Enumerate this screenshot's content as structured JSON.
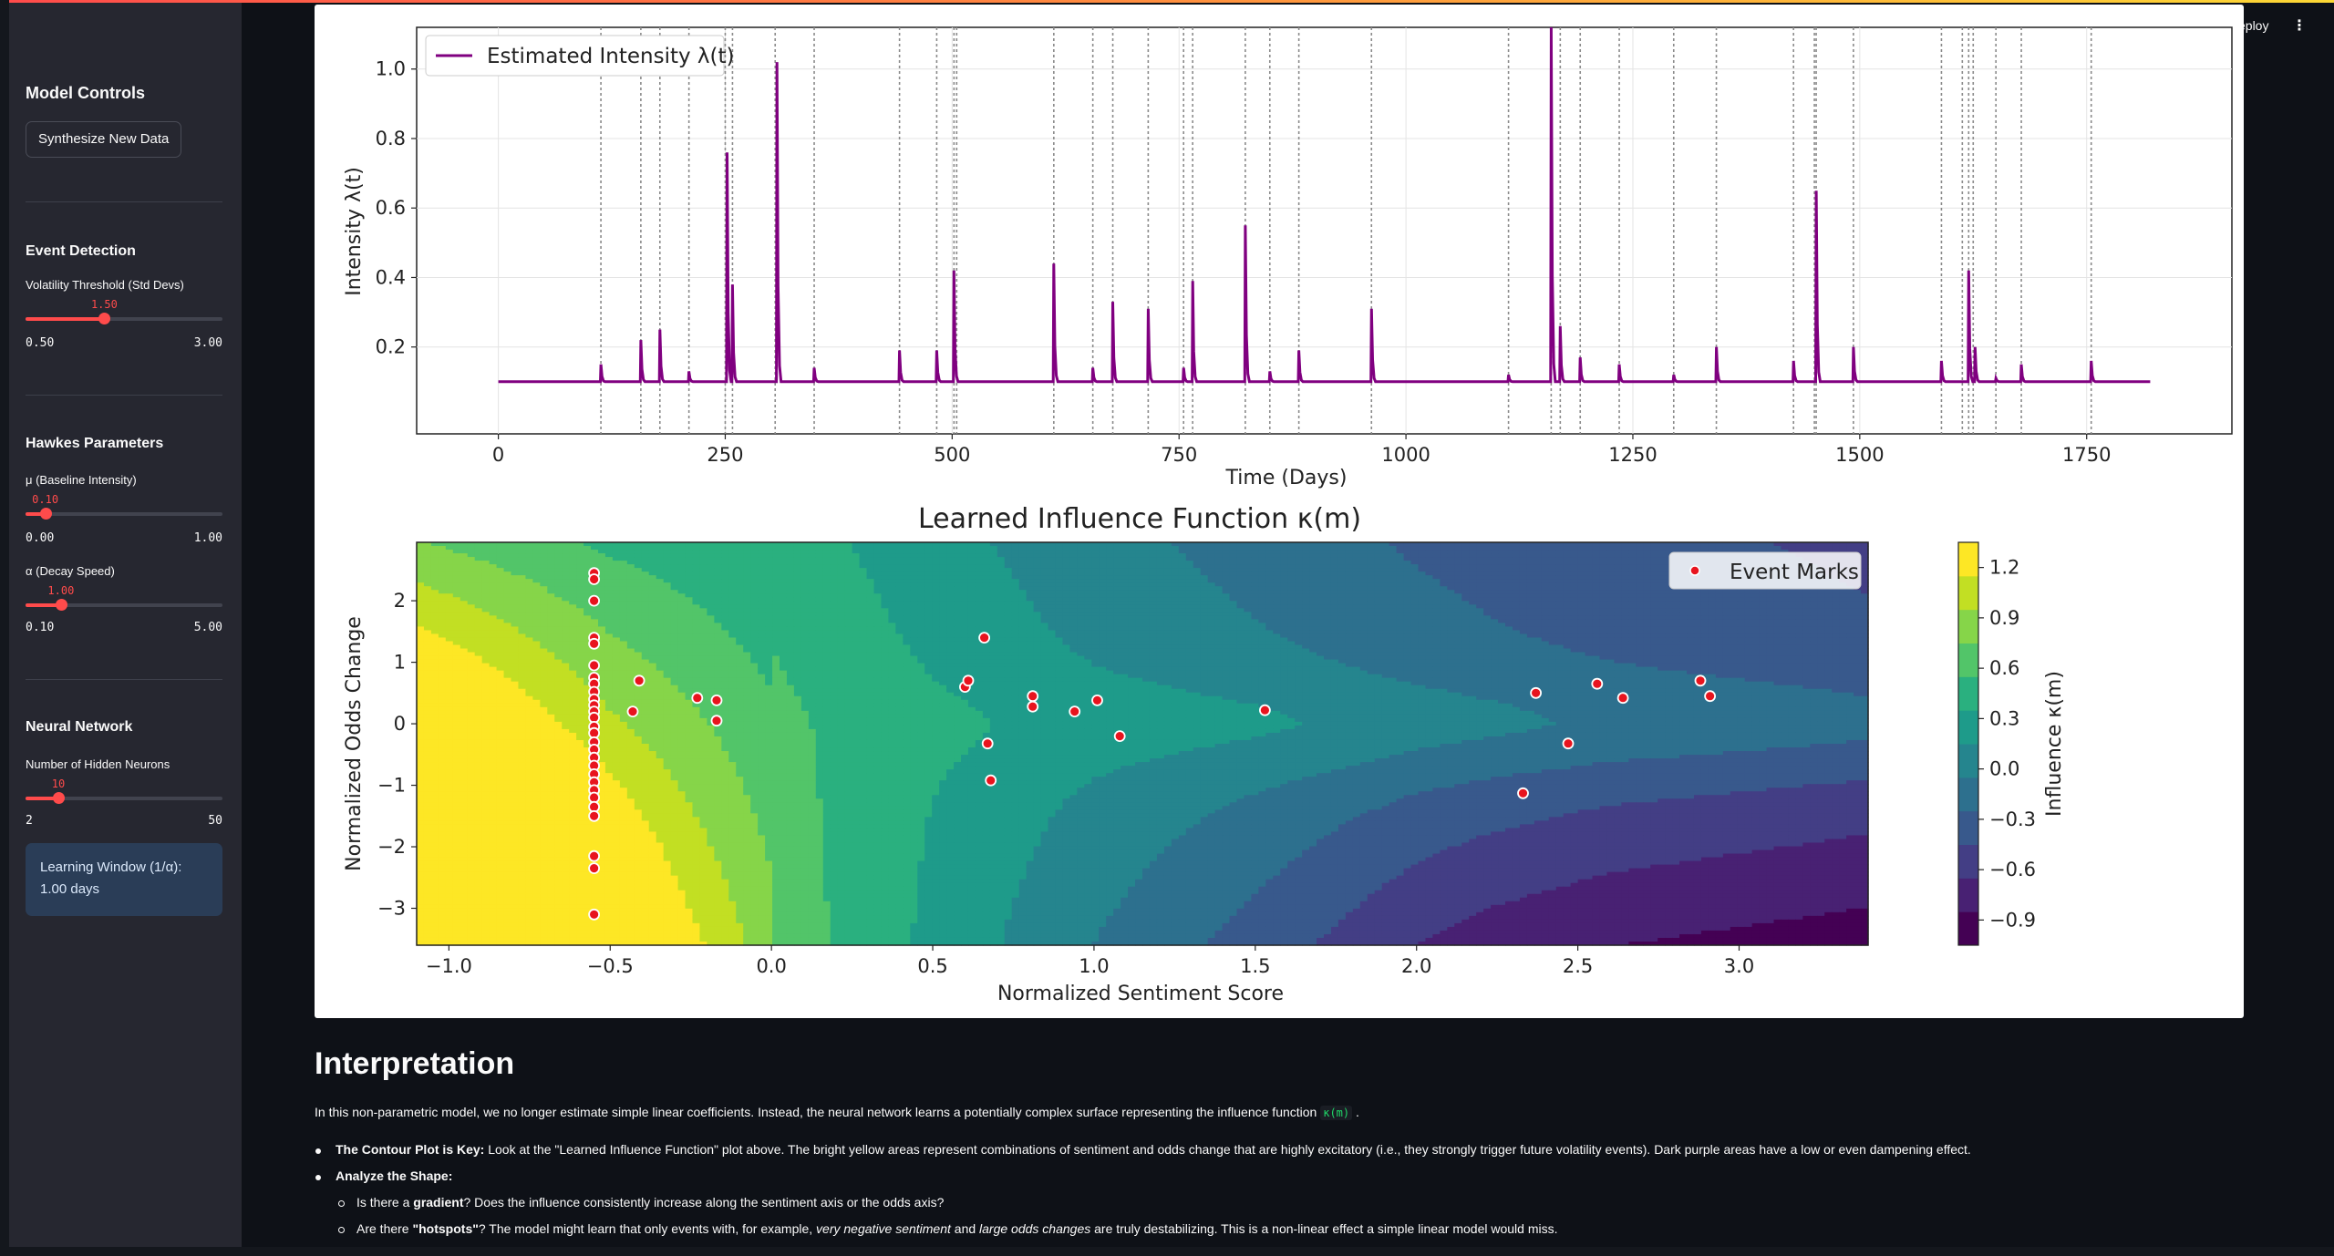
{
  "header": {
    "deploy_label": "eploy",
    "menu_icon": "⋮"
  },
  "sidebar": {
    "model_controls": {
      "title": "Model Controls",
      "synthesize_label": "Synthesize New Data"
    },
    "event_detection": {
      "title": "Event Detection",
      "threshold": {
        "label": "Volatility Threshold (Std Devs)",
        "value": "1.50",
        "min": "0.50",
        "max": "3.00",
        "fraction": 0.4
      }
    },
    "hawkes": {
      "title": "Hawkes Parameters",
      "mu": {
        "label": "μ (Baseline Intensity)",
        "value": "0.10",
        "min": "0.00",
        "max": "1.00",
        "fraction": 0.1
      },
      "alpha": {
        "label": "α (Decay Speed)",
        "value": "1.00",
        "min": "0.10",
        "max": "5.00",
        "fraction": 0.18
      }
    },
    "neural": {
      "title": "Neural Network",
      "neurons": {
        "label": "Number of Hidden Neurons",
        "value": "10",
        "min": "2",
        "max": "50",
        "fraction": 0.1667
      }
    },
    "info": {
      "line1": "Learning Window (1/α):",
      "line2": "1.00 days"
    }
  },
  "chart_data": [
    {
      "type": "line",
      "title": "",
      "legend": "Estimated Intensity λ(t)",
      "legend_position": "top-left",
      "xlabel": "Time (Days)",
      "ylabel": "Intensity λ(t)",
      "xlim": [
        -90,
        1910
      ],
      "ylim": [
        -0.05,
        1.12
      ],
      "xticks": [
        "0",
        "250",
        "500",
        "750",
        "1000",
        "1250",
        "1500",
        "1750"
      ],
      "yticks": [
        "0.2",
        "0.4",
        "0.6",
        "0.8",
        "1.0"
      ],
      "baseline": 0.1,
      "x_end": 1820,
      "color": "#800080",
      "event_lines": [
        113,
        157,
        178,
        210,
        250,
        258,
        305,
        348,
        442,
        483,
        502,
        505,
        612,
        655,
        677,
        716,
        755,
        765,
        823,
        850,
        882,
        962,
        1113,
        1160,
        1170,
        1192,
        1235,
        1295,
        1342,
        1427,
        1450,
        1452,
        1493,
        1590,
        1613,
        1620,
        1625,
        1650,
        1678,
        1755
      ],
      "spikes": [
        {
          "t": 113,
          "h": 0.15
        },
        {
          "t": 157,
          "h": 0.22
        },
        {
          "t": 178,
          "h": 0.25
        },
        {
          "t": 210,
          "h": 0.13
        },
        {
          "t": 252,
          "h": 0.76
        },
        {
          "t": 258,
          "h": 0.38
        },
        {
          "t": 307,
          "h": 1.02
        },
        {
          "t": 348,
          "h": 0.14
        },
        {
          "t": 442,
          "h": 0.19
        },
        {
          "t": 483,
          "h": 0.19
        },
        {
          "t": 502,
          "h": 0.42
        },
        {
          "t": 612,
          "h": 0.44
        },
        {
          "t": 655,
          "h": 0.14
        },
        {
          "t": 677,
          "h": 0.33
        },
        {
          "t": 716,
          "h": 0.31
        },
        {
          "t": 755,
          "h": 0.14
        },
        {
          "t": 765,
          "h": 0.39
        },
        {
          "t": 823,
          "h": 0.55
        },
        {
          "t": 850,
          "h": 0.13
        },
        {
          "t": 882,
          "h": 0.19
        },
        {
          "t": 962,
          "h": 0.31
        },
        {
          "t": 1113,
          "h": 0.12
        },
        {
          "t": 1160,
          "h": 1.12
        },
        {
          "t": 1170,
          "h": 0.26
        },
        {
          "t": 1192,
          "h": 0.17
        },
        {
          "t": 1235,
          "h": 0.15
        },
        {
          "t": 1295,
          "h": 0.12
        },
        {
          "t": 1342,
          "h": 0.2
        },
        {
          "t": 1427,
          "h": 0.16
        },
        {
          "t": 1452,
          "h": 0.65
        },
        {
          "t": 1493,
          "h": 0.2
        },
        {
          "t": 1590,
          "h": 0.16
        },
        {
          "t": 1620,
          "h": 0.42
        },
        {
          "t": 1627,
          "h": 0.2
        },
        {
          "t": 1650,
          "h": 0.11
        },
        {
          "t": 1678,
          "h": 0.15
        },
        {
          "t": 1755,
          "h": 0.16
        }
      ]
    },
    {
      "type": "contour",
      "title": "Learned Influence Function κ(m)",
      "xlabel": "Normalized Sentiment Score",
      "ylabel": "Normalized Odds Change",
      "xlim": [
        -1.1,
        3.4
      ],
      "ylim": [
        -3.6,
        2.95
      ],
      "xticks": [
        "-1.0",
        "-0.5",
        "0.0",
        "0.5",
        "1.0",
        "1.5",
        "2.0",
        "2.5",
        "3.0"
      ],
      "yticks": [
        "-3",
        "-2",
        "-1",
        "0",
        "1",
        "2"
      ],
      "legend": "Event Marks",
      "legend_position": "top-right",
      "colorbar": {
        "label": "Influence κ(m)",
        "levels": [
          -1.05,
          -0.9,
          -0.75,
          -0.6,
          -0.45,
          -0.3,
          -0.15,
          0.0,
          0.15,
          0.3,
          0.45,
          0.6,
          0.75,
          0.9,
          1.05,
          1.2,
          1.35
        ],
        "ticks": [
          "1.2",
          "0.9",
          "0.6",
          "0.3",
          "0.0",
          "−0.3",
          "−0.6",
          "−0.9"
        ],
        "colors": [
          "#440154",
          "#482173",
          "#433e85",
          "#38598c",
          "#2d708e",
          "#25858e",
          "#1e9b8a",
          "#2ab07f",
          "#52c569",
          "#86d549",
          "#c2df23",
          "#fde725"
        ]
      },
      "events": [
        [
          -0.55,
          2.45
        ],
        [
          -0.55,
          2.35
        ],
        [
          -0.55,
          2.0
        ],
        [
          -0.55,
          1.4
        ],
        [
          -0.55,
          1.3
        ],
        [
          -0.55,
          0.95
        ],
        [
          -0.55,
          0.75
        ],
        [
          -0.55,
          0.65
        ],
        [
          -0.55,
          0.52
        ],
        [
          -0.55,
          0.4
        ],
        [
          -0.55,
          0.3
        ],
        [
          -0.55,
          0.2
        ],
        [
          -0.55,
          0.1
        ],
        [
          -0.55,
          -0.05
        ],
        [
          -0.55,
          -0.15
        ],
        [
          -0.55,
          -0.3
        ],
        [
          -0.55,
          -0.42
        ],
        [
          -0.55,
          -0.55
        ],
        [
          -0.55,
          -0.68
        ],
        [
          -0.55,
          -0.82
        ],
        [
          -0.55,
          -0.95
        ],
        [
          -0.55,
          -1.08
        ],
        [
          -0.55,
          -1.2
        ],
        [
          -0.55,
          -1.35
        ],
        [
          -0.55,
          -1.5
        ],
        [
          -0.55,
          -2.15
        ],
        [
          -0.55,
          -2.35
        ],
        [
          -0.55,
          -3.1
        ],
        [
          -0.41,
          0.7
        ],
        [
          -0.43,
          0.2
        ],
        [
          -0.23,
          0.42
        ],
        [
          -0.17,
          0.38
        ],
        [
          -0.17,
          0.05
        ],
        [
          0.6,
          0.6
        ],
        [
          0.61,
          0.7
        ],
        [
          0.66,
          1.4
        ],
        [
          0.67,
          -0.32
        ],
        [
          0.68,
          -0.92
        ],
        [
          0.81,
          0.45
        ],
        [
          0.81,
          0.28
        ],
        [
          0.94,
          0.2
        ],
        [
          1.01,
          0.38
        ],
        [
          1.08,
          -0.2
        ],
        [
          1.53,
          0.22
        ],
        [
          2.33,
          -1.13
        ],
        [
          2.37,
          0.5
        ],
        [
          2.47,
          -0.32
        ],
        [
          2.56,
          0.65
        ],
        [
          2.64,
          0.42
        ],
        [
          2.88,
          0.7
        ],
        [
          2.91,
          0.45
        ]
      ]
    }
  ],
  "main": {
    "heading": "Interpretation",
    "intro_text": "In this non-parametric model, we no longer estimate simple linear coefficients. Instead, the neural network learns a potentially complex surface representing the influence function",
    "intro_code": "κ(m)",
    "intro_end": ".",
    "bullet1_bold": "The Contour Plot is Key:",
    "bullet1_text": "Look at the \"Learned Influence Function\" plot above. The bright yellow areas represent combinations of sentiment and odds change that are highly excitatory (i.e., they strongly trigger future volatility events). Dark purple areas have a low or even dampening effect.",
    "bullet2_bold": "Analyze the Shape:",
    "sub1_pre": "Is there a",
    "sub1_bold": "gradient",
    "sub1_post": "? Does the influence consistently increase along the sentiment axis or the odds axis?",
    "sub2_pre": "Are there",
    "sub2_bold": "\"hotspots\"",
    "sub2_mid": "? The model might learn that only events with, for example,",
    "sub2_italic1": "very negative sentiment",
    "sub2_and": "and",
    "sub2_italic2": "large odds changes",
    "sub2_post": "are truly destabilizing. This is a non-linear effect a simple linear model would miss."
  }
}
